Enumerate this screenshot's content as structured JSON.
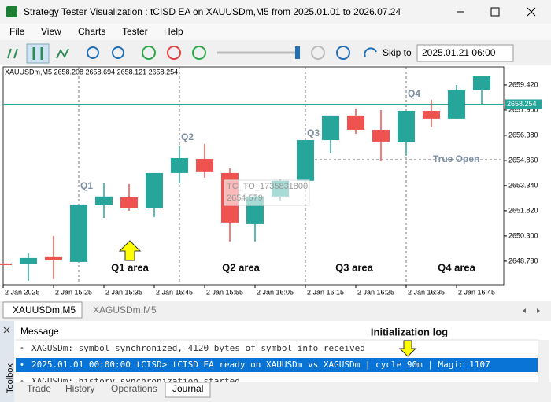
{
  "window": {
    "title": "Strategy Tester Visualization : tCISD EA on XAUUSDm,M5 from 2025.01.01 to 2026.07.24"
  },
  "menu": [
    "File",
    "View",
    "Charts",
    "Tester",
    "Help"
  ],
  "toolbar": {
    "skip_label": "Skip to",
    "skip_value": "2025.01.21 06:00"
  },
  "chart_data": {
    "type": "candlestick",
    "symbol_info": "XAUUSDm,M5  2658.208 2658.694 2658.121 2658.254",
    "up_color": "#26a69a",
    "down_color": "#ef5350",
    "open": [
      2648.64,
      2648.59,
      2649.02,
      2648.73,
      2652.15,
      2652.63,
      2651.96,
      2654.1,
      2654.95,
      2654.1,
      2651.01,
      2652.68,
      2653.63,
      2656.09,
      2657.57,
      2656.71,
      2655.95,
      2657.85,
      2657.38,
      2659.09
    ],
    "high": [
      2648.64,
      2649.26,
      2650.3,
      2652.2,
      2653.48,
      2653.44,
      2654.1,
      2655.72,
      2655.86,
      2654.38,
      2652.77,
      2653.72,
      2656.09,
      2657.57,
      2658.0,
      2657.9,
      2657.85,
      2658.52,
      2659.42,
      2659.94
    ],
    "low": [
      2648.54,
      2647.59,
      2647.69,
      2648.73,
      2651.39,
      2651.82,
      2651.44,
      2653.48,
      2653.82,
      2649.97,
      2649.97,
      2652.44,
      2653.58,
      2655.29,
      2656.47,
      2654.81,
      2655.15,
      2656.86,
      2657.38,
      2658.19
    ],
    "close": [
      2648.54,
      2648.97,
      2648.83,
      2652.2,
      2652.68,
      2651.96,
      2654.1,
      2655.0,
      2654.15,
      2651.11,
      2652.68,
      2653.63,
      2656.09,
      2657.57,
      2656.71,
      2656.0,
      2657.85,
      2657.38,
      2659.09,
      2659.94
    ],
    "ylim": [
      2647.35,
      2660.51
    ],
    "yticks": [
      {
        "value": 2659.42,
        "label": "2659.420"
      },
      {
        "value": 2657.9,
        "label": "2657.900"
      },
      {
        "value": 2656.38,
        "label": "2656.380"
      },
      {
        "value": 2654.86,
        "label": "2654.860"
      },
      {
        "value": 2653.34,
        "label": "2653.340"
      },
      {
        "value": 2651.82,
        "label": "2651.820"
      },
      {
        "value": 2650.3,
        "label": "2650.300"
      },
      {
        "value": 2648.78,
        "label": "2648.780"
      }
    ],
    "x_labels": [
      "2 Jan 2025",
      "2 Jan 15:25",
      "2 Jan 15:35",
      "2 Jan 15:45",
      "2 Jan 15:55",
      "2 Jan 16:05",
      "2 Jan 16:15",
      "2 Jan 16:25",
      "2 Jan 16:35",
      "2 Jan 16:45"
    ],
    "current_price": 2658.254,
    "true_open": 2654.91,
    "true_open_label": "True Open",
    "quarter_labels": [
      "Q1",
      "Q2",
      "Q3",
      "Q4"
    ],
    "area_labels": [
      "Q1 area",
      "Q2 area",
      "Q3 area",
      "Q4 area"
    ],
    "tooltip": [
      "TC_TO_1735831800",
      "2654.579"
    ],
    "annotation": "Initialization log"
  },
  "chart_tabs": [
    "XAUUSDm,M5",
    "XAGUSDm,M5"
  ],
  "toolbox": {
    "side_label": "Toolbox",
    "header": "Message",
    "rows": [
      "XAGUSDm: symbol synchronized, 4120 bytes of symbol info received",
      "2025.01.01 00:00:00   tCISD> tCISD EA ready on XAUUSDm vs XAGUSDm | cycle 90m | Magic 1107",
      "XAGUSDm: history synchronization started"
    ],
    "tabs": [
      "Trade",
      "History",
      "Operations",
      "Journal"
    ]
  }
}
